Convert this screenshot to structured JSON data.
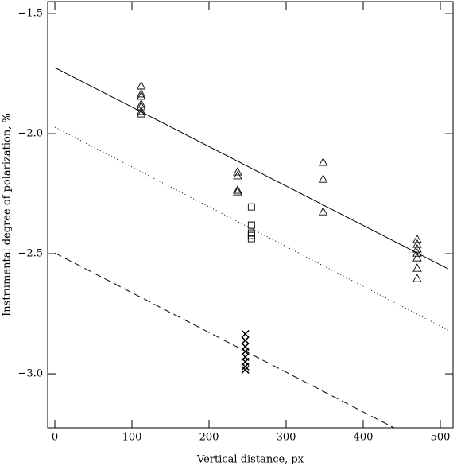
{
  "chart_data": {
    "type": "scatter",
    "x_label": "Vertical distance, px",
    "y_label": "Instrumental degree of polarization, %",
    "xlim": [
      -9.3,
      516.5
    ],
    "xticks": [
      0,
      100,
      200,
      300,
      400,
      500
    ],
    "ylim": [
      -3.225,
      -1.45
    ],
    "yticks": [
      {
        "value": -1.5,
        "label": "−1.5"
      },
      {
        "value": -2.0,
        "label": "−2.0"
      },
      {
        "value": -2.5,
        "label": "−2.5"
      },
      {
        "value": -3.0,
        "label": "−3.0"
      }
    ],
    "color": "#000000",
    "series": [
      {
        "mode": "line",
        "style": "solid",
        "x": [
          0,
          510
        ],
        "values": [
          -1.725,
          -2.563
        ]
      },
      {
        "mode": "line",
        "style": "dotted",
        "x": [
          0,
          510
        ],
        "values": [
          -1.973,
          -2.818
        ]
      },
      {
        "mode": "line",
        "style": "dashed",
        "x": [
          0,
          440
        ],
        "values": [
          -2.497,
          -3.225
        ]
      },
      {
        "mode": "marker",
        "marker": "triangle",
        "x": [
          112,
          112,
          112,
          112,
          112,
          112,
          112,
          237,
          237,
          237,
          237,
          348,
          348,
          348,
          470,
          470,
          470,
          470,
          470,
          470,
          470
        ],
        "values": [
          -1.801,
          -1.834,
          -1.844,
          -1.877,
          -1.887,
          -1.907,
          -1.917,
          -2.159,
          -2.175,
          -2.235,
          -2.242,
          -2.119,
          -2.189,
          -2.325,
          -2.44,
          -2.46,
          -2.48,
          -2.497,
          -2.517,
          -2.56,
          -2.603
        ]
      },
      {
        "mode": "marker",
        "marker": "square",
        "x": [
          255,
          255,
          255,
          255,
          255
        ],
        "values": [
          -2.305,
          -2.381,
          -2.414,
          -2.424,
          -2.437
        ]
      },
      {
        "mode": "marker",
        "marker": "cross",
        "x": [
          247,
          247,
          247,
          247,
          247,
          247,
          247,
          247
        ],
        "values": [
          -2.834,
          -2.861,
          -2.887,
          -2.907,
          -2.93,
          -2.95,
          -2.97,
          -2.983
        ]
      }
    ]
  }
}
